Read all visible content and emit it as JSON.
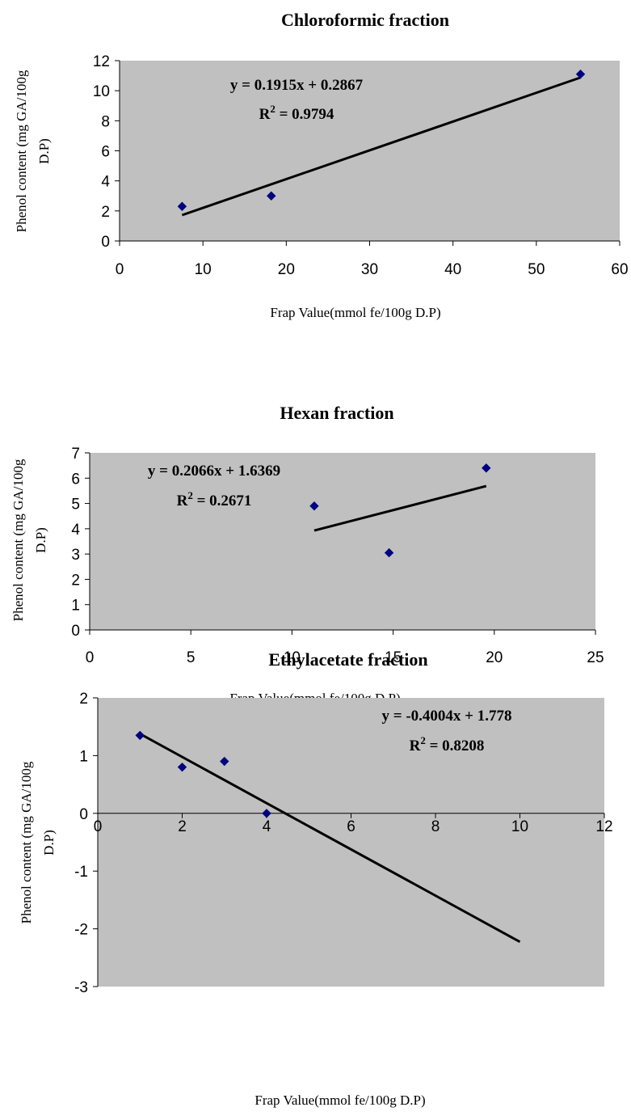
{
  "chart_data": [
    {
      "type": "scatter",
      "title": "Chloroformic fraction",
      "xlabel": "Frap Value(mmol fe/100g D.P)",
      "ylabel": "Phenol content (mg GA/100g D.P)",
      "xlim": [
        0,
        60
      ],
      "ylim": [
        0,
        12
      ],
      "xticks": [
        0,
        10,
        20,
        30,
        40,
        50,
        60
      ],
      "yticks": [
        0,
        2,
        4,
        6,
        8,
        10,
        12
      ],
      "points": [
        {
          "x": 7.5,
          "y": 2.3
        },
        {
          "x": 18.2,
          "y": 3.0
        },
        {
          "x": 55.3,
          "y": 11.1
        }
      ],
      "trendline": {
        "slope": 0.1915,
        "intercept": 0.2867,
        "x_range": [
          7.5,
          55.3
        ]
      },
      "equation": "y = 0.1915x + 0.2867",
      "r2_label": "R",
      "r2_value": " = 0.9794",
      "grid": false,
      "plot_background": "#c0c0c0",
      "marker_color": "#000080",
      "line_color": "#000000"
    },
    {
      "type": "scatter",
      "title": "Hexan fraction",
      "xlabel": "Frap Value(mmol fe/100g D.P)",
      "ylabel": "Phenol content (mg GA/100g D.P)",
      "xlim": [
        0,
        25
      ],
      "ylim": [
        0,
        7
      ],
      "xticks": [
        0,
        5,
        10,
        15,
        20,
        25
      ],
      "yticks": [
        0,
        1,
        2,
        3,
        4,
        5,
        6,
        7
      ],
      "points": [
        {
          "x": 11.1,
          "y": 4.9
        },
        {
          "x": 14.8,
          "y": 3.05
        },
        {
          "x": 19.6,
          "y": 6.4
        }
      ],
      "trendline": {
        "slope": 0.2066,
        "intercept": 1.6369,
        "x_range": [
          11.1,
          19.6
        ]
      },
      "equation": "y = 0.2066x + 1.6369",
      "r2_label": "R",
      "r2_value": " = 0.2671",
      "grid": false,
      "plot_background": "#c0c0c0",
      "marker_color": "#000080",
      "line_color": "#000000"
    },
    {
      "type": "scatter",
      "title": "Ethylacetate fraction",
      "xlabel": "Frap Value(mmol fe/100g D.P)",
      "ylabel": "Phenol content (mg GA/100g D.P)",
      "xlim": [
        0,
        12
      ],
      "ylim": [
        -3,
        2
      ],
      "xticks": [
        0,
        2,
        4,
        6,
        8,
        10,
        12
      ],
      "yticks": [
        -3,
        -2,
        -1,
        0,
        1,
        2
      ],
      "points": [
        {
          "x": 1,
          "y": 1.35
        },
        {
          "x": 2,
          "y": 0.8
        },
        {
          "x": 3,
          "y": 0.9
        },
        {
          "x": 4,
          "y": 0.0
        }
      ],
      "trendline": {
        "slope": -0.4004,
        "intercept": 1.778,
        "x_range": [
          1,
          10
        ]
      },
      "equation": "y = -0.4004x + 1.778",
      "r2_label": "R",
      "r2_value": " = 0.8208",
      "grid": false,
      "plot_background": "#c0c0c0",
      "marker_color": "#000080",
      "line_color": "#000000"
    }
  ]
}
